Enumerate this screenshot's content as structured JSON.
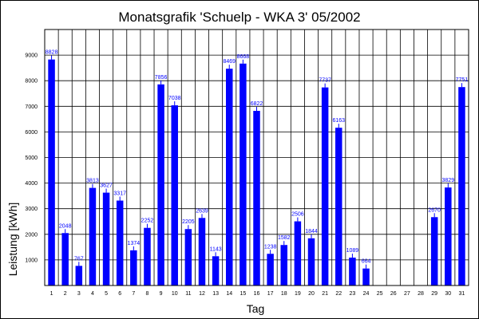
{
  "chart_data": {
    "type": "bar",
    "title": "Monatsgrafik 'Schuelp - WKA 3' 05/2002",
    "xlabel": "Tag",
    "ylabel": "Leistung [kWh]",
    "ylim": [
      0,
      10000
    ],
    "ytick_labels": [
      "1000",
      "2000",
      "3000",
      "4000",
      "5000",
      "6000",
      "7000",
      "8000",
      "9000"
    ],
    "grid": true,
    "bar_color": "#0000ff",
    "categories": [
      "1",
      "2",
      "3",
      "4",
      "5",
      "6",
      "7",
      "8",
      "9",
      "10",
      "11",
      "12",
      "13",
      "14",
      "15",
      "16",
      "17",
      "18",
      "19",
      "20",
      "21",
      "22",
      "23",
      "24",
      "25",
      "26",
      "27",
      "28",
      "29",
      "30",
      "31"
    ],
    "values": [
      8828,
      2048,
      767,
      3813,
      3627,
      3317,
      1374,
      2252,
      7856,
      7038,
      2205,
      2639,
      1143,
      8469,
      8668,
      6822,
      1238,
      1582,
      2506,
      1844,
      7737,
      6163,
      1089,
      664,
      null,
      null,
      null,
      null,
      2670,
      3829,
      7751
    ],
    "value_labels": [
      "8828",
      "2048",
      "767",
      "3813",
      "3627",
      "3317",
      "1374",
      "2252",
      "7856",
      "7038",
      "2205",
      "2639",
      "1143",
      "8469",
      "8668",
      "6822",
      "1238",
      "1582",
      "2506",
      "1844",
      "7737",
      "6163",
      "1089",
      "664",
      "",
      "",
      "",
      "",
      "2670",
      "3829",
      "7751"
    ]
  }
}
